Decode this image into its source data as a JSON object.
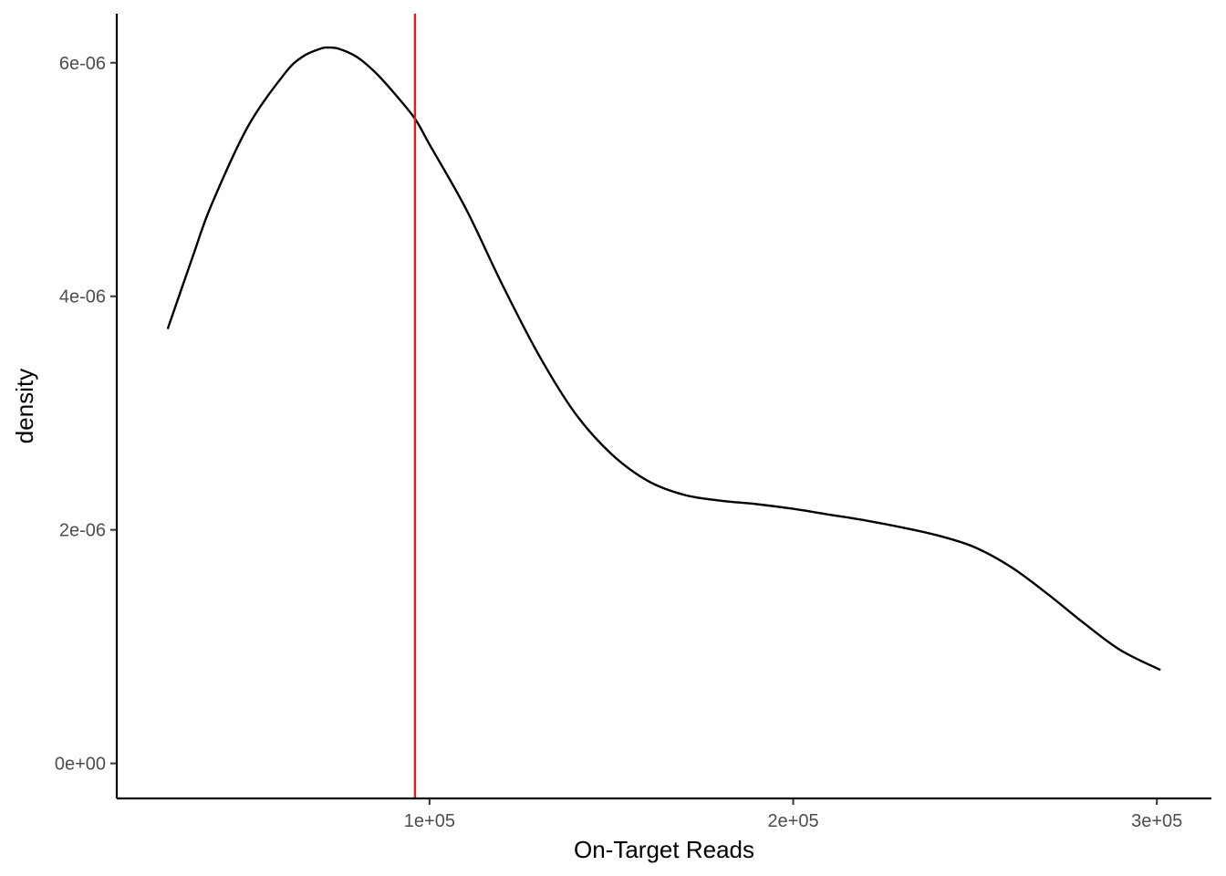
{
  "chart_data": {
    "type": "line",
    "title": "",
    "xlabel": "On-Target Reads",
    "ylabel": "density",
    "xlim": [
      14000,
      315000
    ],
    "ylim": [
      -3e-07,
      6.42e-06
    ],
    "x_ticks": [
      {
        "value": 100000,
        "label": "1e+05"
      },
      {
        "value": 200000,
        "label": "2e+05"
      },
      {
        "value": 300000,
        "label": "3e+05"
      }
    ],
    "y_ticks": [
      {
        "value": 0,
        "label": "0e+00"
      },
      {
        "value": 2e-06,
        "label": "2e-06"
      },
      {
        "value": 4e-06,
        "label": "4e-06"
      },
      {
        "value": 6e-06,
        "label": "6e-06"
      }
    ],
    "grid": false,
    "series": [
      {
        "color": "#000000",
        "x": [
          28000,
          35000,
          40000,
          50000,
          60000,
          65000,
          70000,
          72000,
          75000,
          80000,
          85000,
          90000,
          96000,
          100000,
          110000,
          120000,
          130000,
          140000,
          150000,
          160000,
          170000,
          180000,
          190000,
          200000,
          210000,
          220000,
          230000,
          240000,
          250000,
          260000,
          270000,
          280000,
          290000,
          301000
        ],
        "y": [
          3.72e-06,
          4.35e-06,
          4.78e-06,
          5.45e-06,
          5.9e-06,
          6.05e-06,
          6.12e-06,
          6.13e-06,
          6.12e-06,
          6.05e-06,
          5.92e-06,
          5.75e-06,
          5.52e-06,
          5.3e-06,
          4.75e-06,
          4.1e-06,
          3.5e-06,
          3e-06,
          2.65e-06,
          2.42e-06,
          2.3e-06,
          2.25e-06,
          2.22e-06,
          2.18e-06,
          2.13e-06,
          2.08e-06,
          2.02e-06,
          1.95e-06,
          1.85e-06,
          1.68e-06,
          1.45e-06,
          1.2e-06,
          9.7e-07,
          8e-07
        ]
      }
    ],
    "reference_line": {
      "type": "vertical",
      "x": 96000,
      "color": "#e41a1c"
    }
  }
}
